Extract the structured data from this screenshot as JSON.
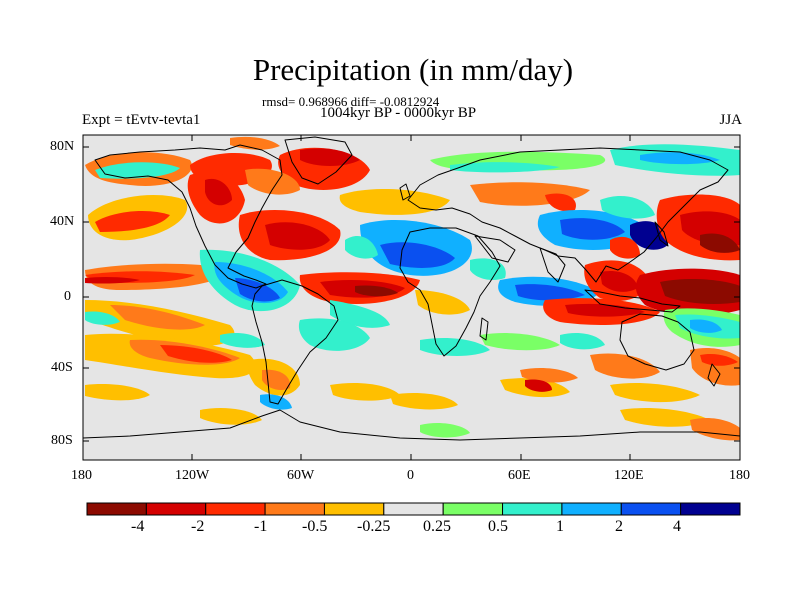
{
  "title": "Precipitation (in mm/day)",
  "stats": "rmsd= 0.968966 diff= -0.0812924",
  "period": "1004kyr BP - 0000kyr BP",
  "experiment": "Expt = tEvtv-tevta1",
  "season": "JJA",
  "lat_labels": [
    "80N",
    "40N",
    "0",
    "40S",
    "80S"
  ],
  "lon_labels": [
    "180",
    "120W",
    "60W",
    "0",
    "60E",
    "120E",
    "180"
  ],
  "colorbar": {
    "labels": [
      "-4",
      "-2",
      "-1",
      "-0.5",
      "-0.25",
      "0.25",
      "0.5",
      "1",
      "2",
      "4"
    ],
    "colors": [
      "#8c0a00",
      "#d40000",
      "#ff2a00",
      "#ff7a1a",
      "#ffbf00",
      "#e5e5e5",
      "#7aff66",
      "#33f0cc",
      "#10b0ff",
      "#0a50f0",
      "#000090"
    ]
  }
}
